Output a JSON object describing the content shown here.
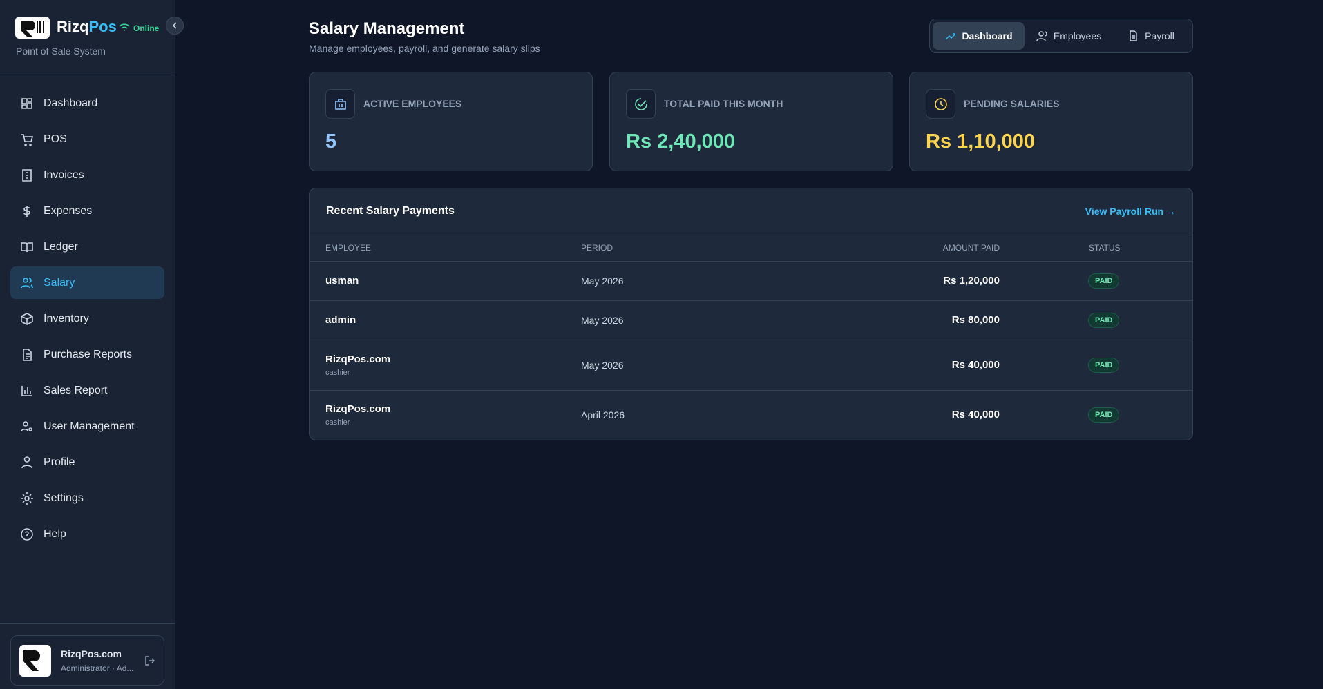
{
  "sidebar": {
    "brand_part1": "Rizq",
    "brand_part2": "Pos",
    "status": "Online",
    "tagline": "Point of Sale System",
    "nav": [
      {
        "label": "Dashboard"
      },
      {
        "label": "POS"
      },
      {
        "label": "Invoices"
      },
      {
        "label": "Expenses"
      },
      {
        "label": "Ledger"
      },
      {
        "label": "Salary",
        "active": true
      },
      {
        "label": "Inventory"
      },
      {
        "label": "Purchase Reports"
      },
      {
        "label": "Sales Report"
      },
      {
        "label": "User Management"
      },
      {
        "label": "Profile"
      },
      {
        "label": "Settings"
      },
      {
        "label": "Help"
      }
    ],
    "user": {
      "name": "RizqPos.com",
      "role": "Administrator · Ad..."
    }
  },
  "header": {
    "title": "Salary Management",
    "subtitle": "Manage employees, payroll, and generate salary slips",
    "tabs": [
      {
        "label": "Dashboard",
        "active": true
      },
      {
        "label": "Employees"
      },
      {
        "label": "Payroll"
      }
    ]
  },
  "stats": [
    {
      "label": "ACTIVE EMPLOYEES",
      "value": "5",
      "color": "#93c5fd"
    },
    {
      "label": "TOTAL PAID THIS MONTH",
      "value": "Rs 2,40,000",
      "color": "#6ee7b7"
    },
    {
      "label": "PENDING SALARIES",
      "value": "Rs 1,10,000",
      "color": "#fcd34d"
    }
  ],
  "table": {
    "title": "Recent Salary Payments",
    "link": "View Payroll Run →",
    "columns": [
      "EMPLOYEE",
      "PERIOD",
      "AMOUNT PAID",
      "STATUS"
    ],
    "rows": [
      {
        "employee": "usman",
        "period": "May 2026",
        "amount": "Rs 1,20,000",
        "status": "PAID"
      },
      {
        "employee": "admin",
        "period": "May 2026",
        "amount": "Rs 80,000",
        "status": "PAID"
      },
      {
        "employee": "RizqPos.com",
        "role": "cashier",
        "period": "May 2026",
        "amount": "Rs 40,000",
        "status": "PAID"
      },
      {
        "employee": "RizqPos.com",
        "role": "cashier",
        "period": "April 2026",
        "amount": "Rs 40,000",
        "status": "PAID"
      }
    ]
  }
}
